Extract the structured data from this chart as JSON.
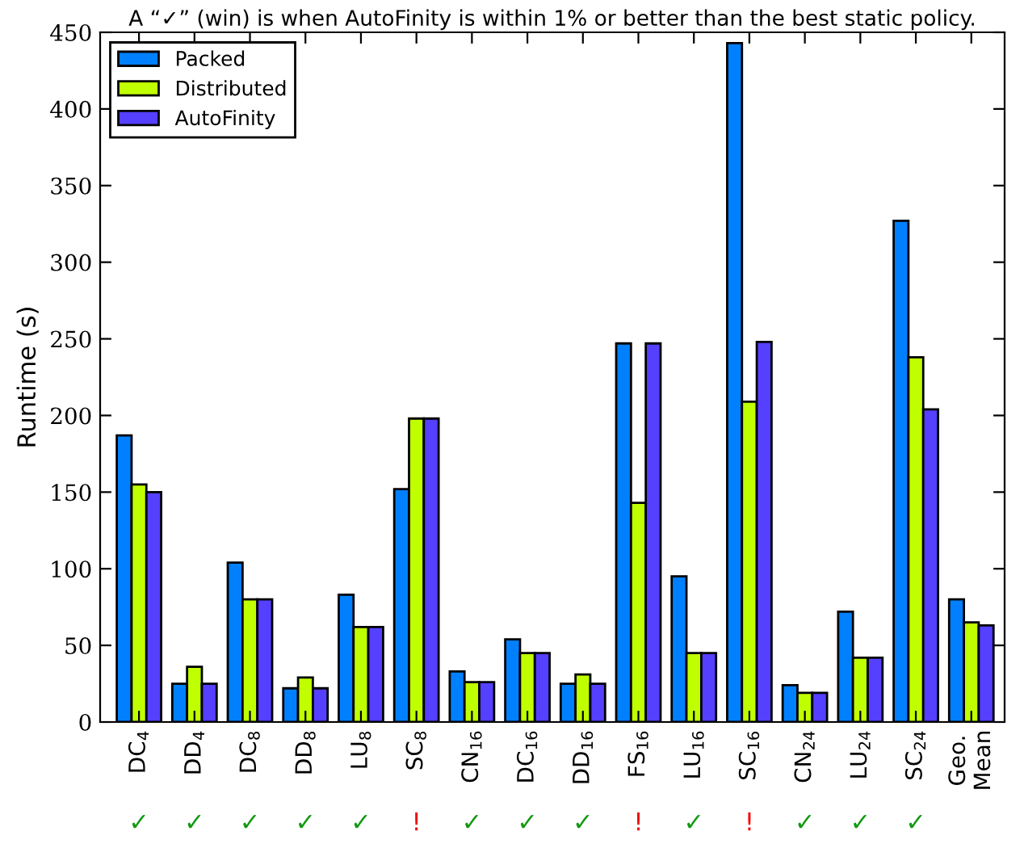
{
  "chart_data": {
    "type": "bar",
    "title": "A “✓” (win) is when AutoFinity is within 1% or better than the best static policy.",
    "ylabel": "Runtime (s)",
    "categories": [
      "DC$_{4}$",
      "DD$_{4}$",
      "DC$_{8}$",
      "DD$_{8}$",
      "LU$_{8}$",
      "SC$_{8}$",
      "CN$_{16}$",
      "DC$_{16}$",
      "DD$_{16}$",
      "FS$_{16}$",
      "LU$_{16}$",
      "SC$_{16}$",
      "CN$_{24}$",
      "LU$_{24}$",
      "SC$_{24}$",
      "Geo.\nMean"
    ],
    "series": [
      {
        "name": "Packed",
        "color": "#0080ff",
        "values": [
          187,
          25,
          104,
          22,
          83,
          152,
          33,
          54,
          25,
          247,
          95,
          443,
          24,
          72,
          327,
          80
        ]
      },
      {
        "name": "Distributed",
        "color": "#c0ff00",
        "values": [
          155,
          36,
          80,
          29,
          62,
          198,
          26,
          45,
          31,
          143,
          45,
          209,
          19,
          42,
          238,
          65
        ]
      },
      {
        "name": "AutoFinity",
        "color": "#5540ff",
        "values": [
          150,
          25,
          80,
          22,
          62,
          198,
          26,
          45,
          25,
          247,
          45,
          248,
          19,
          42,
          204,
          63
        ]
      }
    ],
    "ylim": [
      0,
      450
    ],
    "yticks": [
      0,
      50,
      100,
      150,
      200,
      250,
      300,
      350,
      400,
      450
    ],
    "legend": "top left",
    "grid": false,
    "annotations": [
      "✓",
      "✓",
      "✓",
      "✓",
      "✓",
      "!",
      "✓",
      "✓",
      "✓",
      "!",
      "✓",
      "!",
      "✓",
      "✓",
      "✓"
    ]
  }
}
